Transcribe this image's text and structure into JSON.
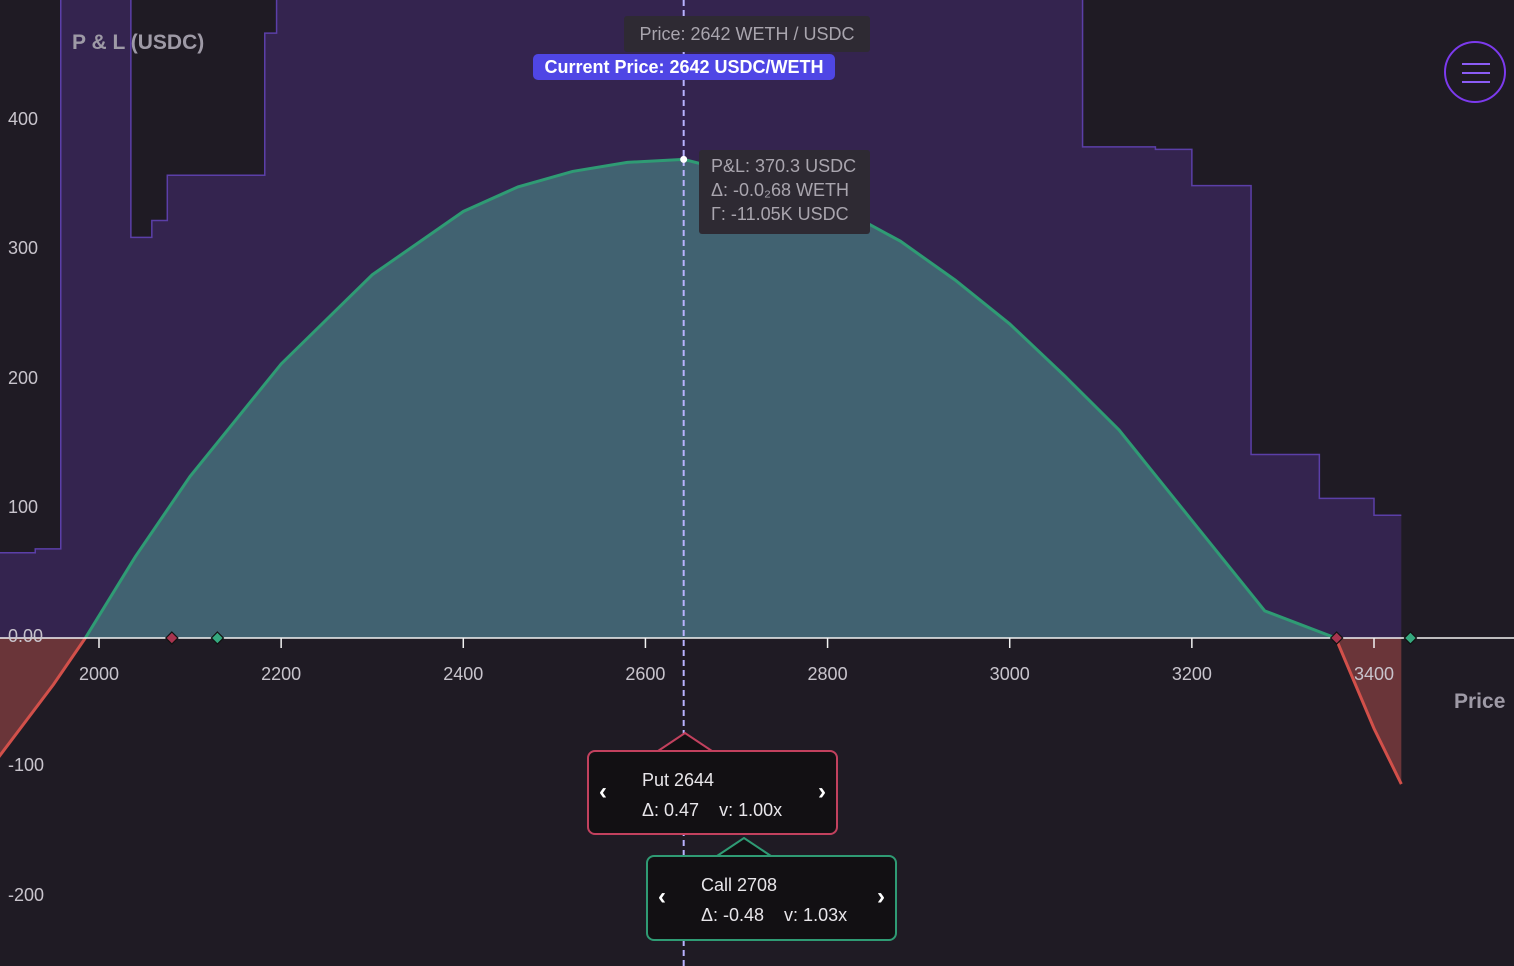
{
  "axes": {
    "y_title": "P & L (USDC)",
    "x_title": "Price"
  },
  "hover": {
    "price_label": "Price: 2642 WETH / USDC",
    "pnl": "P&L: 370.3 USDC",
    "delta": "Δ: -0.0₂68 WETH",
    "gamma": "Γ: -11.05K USDC"
  },
  "current_price_label": "Current Price: 2642 USDC/WETH",
  "menu": {
    "icon": "hamburger-menu-icon"
  },
  "legs": [
    {
      "name": "Put 2644",
      "greeks": "Δ: 0.47    v: 1.00x",
      "color": "#c2415e"
    },
    {
      "name": "Call 2708",
      "greeks": "Δ: -0.48    v: 1.03x",
      "color": "#2f9b74"
    }
  ],
  "colors": {
    "background": "#1f1b24",
    "liquidity": "#34244f",
    "liquidity_edge": "#5b3fa8",
    "profit_fill": "#416271",
    "profit_line": "#2f9b74",
    "loss_fill": "#6a3539",
    "loss_line": "#d2504a",
    "current_price_line": "#b9b3ff"
  },
  "chart_data": {
    "type": "area",
    "title": "",
    "xlabel": "Price",
    "ylabel": "P & L (USDC)",
    "xlim": [
      1890,
      3430
    ],
    "ylim": [
      -257,
      500
    ],
    "x_ticks": [
      2000,
      2200,
      2400,
      2600,
      2800,
      3000,
      3200,
      3400
    ],
    "y_ticks": [
      400,
      300,
      200,
      100,
      0,
      -100,
      -200
    ],
    "y_tick_labels": [
      "400",
      "300",
      "200",
      "100",
      "0.00",
      "-100",
      "-200"
    ],
    "pnl_series": {
      "x": [
        1890,
        1950,
        1985,
        2040,
        2100,
        2200,
        2300,
        2400,
        2460,
        2520,
        2580,
        2642,
        2700,
        2760,
        2820,
        2880,
        2940,
        3000,
        3060,
        3120,
        3200,
        3280,
        3358,
        3400,
        3430
      ],
      "y": [
        -92,
        -36,
        0,
        63,
        125,
        212,
        281,
        330,
        349,
        361,
        368,
        370.3,
        360,
        349,
        330,
        307,
        277,
        243,
        203,
        161,
        91,
        21,
        0,
        -70,
        -113
      ]
    },
    "liquidity_depth": {
      "x": [
        1890,
        1930,
        1958,
        2000,
        2035,
        2058,
        2075,
        2100,
        2130,
        2160,
        2195,
        2220,
        2280,
        2340,
        2400,
        2500,
        2600,
        2700,
        2800,
        2900,
        3000,
        3050,
        3080,
        3160,
        3200,
        3265,
        3300,
        3340,
        3370,
        3400,
        3430
      ],
      "y": [
        66,
        69,
        500,
        500,
        500,
        500,
        500,
        500,
        500,
        500,
        500,
        500,
        500,
        500,
        500,
        500,
        500,
        500,
        500,
        500,
        500,
        500,
        380,
        378,
        350,
        142,
        142,
        108,
        108,
        95,
        95
      ],
      "steps_x": [
        1958,
        2035,
        2058,
        2075,
        2128,
        2182,
        2195
      ],
      "steps_y": [
        500,
        310,
        323,
        358,
        358,
        468,
        500
      ]
    },
    "current_price": 2642,
    "markers": [
      {
        "x": 2080,
        "y": 0,
        "kind": "put"
      },
      {
        "x": 2130,
        "y": 0,
        "kind": "call"
      },
      {
        "x": 3359,
        "y": 0,
        "kind": "put"
      },
      {
        "x": 3440,
        "y": 0,
        "kind": "call"
      }
    ],
    "grid": false,
    "legend": "none"
  }
}
